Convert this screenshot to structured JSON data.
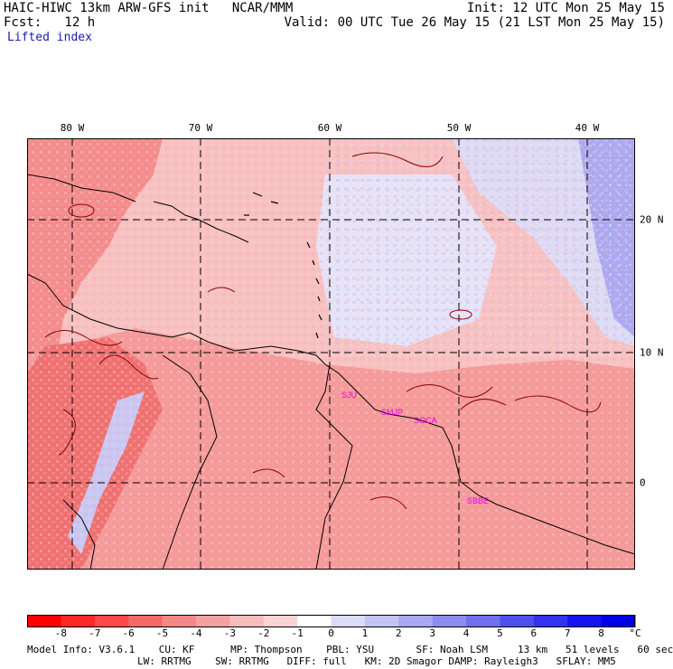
{
  "header": {
    "title": "HAIC-HIWC 13km ARW-GFS init   NCAR/MMM",
    "init": "Init: 12 UTC Mon 25 May 15",
    "fcst": "Fcst:   12 h",
    "valid": "Valid: 00 UTC Tue 26 May 15 (21 LST Mon 25 May 15)",
    "field": "Lifted index"
  },
  "map": {
    "lon_labels": [
      "80 W",
      "70 W",
      "60 W",
      "50 W",
      "40 W"
    ],
    "lat_labels": [
      "20 N",
      "10 N",
      "0"
    ],
    "stations": [
      "SJU",
      "SMJP",
      "SOCA",
      "SBBE"
    ],
    "colors": {
      "station": "#e000e0",
      "grid": "#000000",
      "coast": "#000000",
      "contour": "#8b0000"
    }
  },
  "colorbar": {
    "labels": [
      "-8",
      "-7",
      "-6",
      "-5",
      "-4",
      "-3",
      "-2",
      "-1",
      "0",
      "1",
      "2",
      "3",
      "4",
      "5",
      "6",
      "7",
      "8"
    ],
    "unit": "°C",
    "colors": [
      "#ff0000",
      "#ff2828",
      "#ff4848",
      "#f56868",
      "#f48888",
      "#f5a0a0",
      "#f8bcbc",
      "#fad4d4",
      "#ffffff",
      "#dcdcf8",
      "#c4c4f4",
      "#a8a8f4",
      "#8c8cf2",
      "#7070f0",
      "#5050f0",
      "#3232f0",
      "#1414f0",
      "#0000e8"
    ]
  },
  "model_info": {
    "line1": "Model Info: V3.6.1    CU: KF      MP: Thompson    PBL: YSU       SF: Noah LSM     13 km   51 levels   60 sec",
    "line2": "LW: RRTMG    SW: RRTMG   DIFF: full   KM: 2D Smagor DAMP: Rayleigh3   SFLAY: MM5"
  }
}
